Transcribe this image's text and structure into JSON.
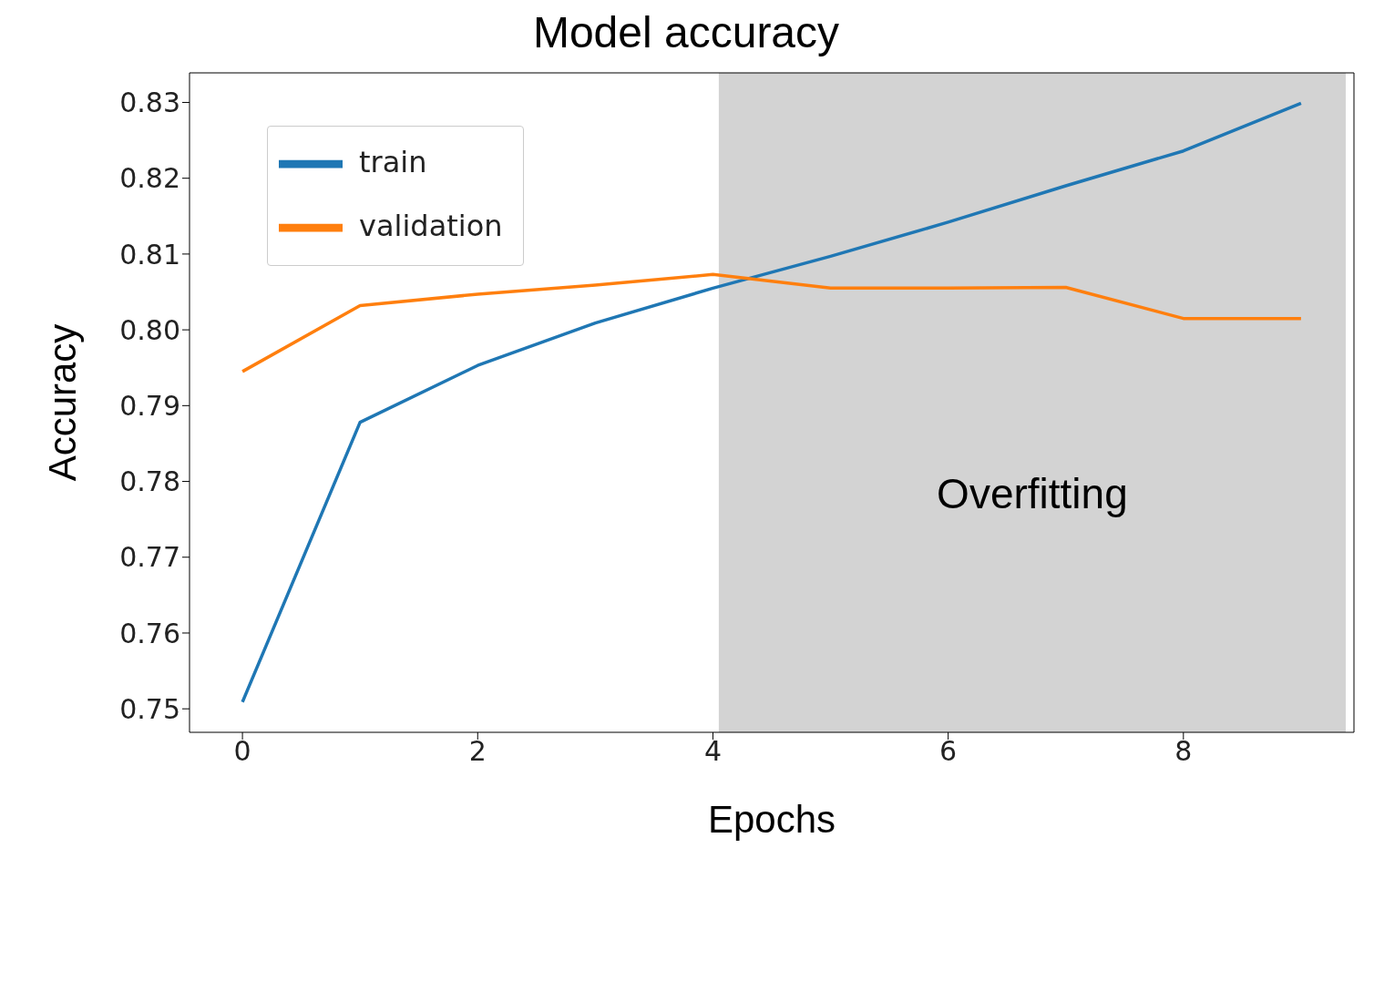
{
  "chart_data": {
    "type": "line",
    "title": "Model accuracy",
    "xlabel": "Epochs",
    "ylabel": "Accuracy",
    "x": [
      0,
      1,
      2,
      3,
      4,
      5,
      6,
      7,
      8,
      9
    ],
    "series": [
      {
        "name": "train",
        "color": "#1f77b4",
        "values": [
          0.7509,
          0.7878,
          0.7953,
          0.8009,
          0.8055,
          0.8097,
          0.8142,
          0.819,
          0.8236,
          0.8299
        ]
      },
      {
        "name": "validation",
        "color": "#ff7f0e",
        "values": [
          0.7945,
          0.8032,
          0.8047,
          0.8059,
          0.8073,
          0.8055,
          0.8055,
          0.8056,
          0.8015,
          0.8015
        ]
      }
    ],
    "xlim": [
      -0.45,
      9.45
    ],
    "xticks": [
      0,
      2,
      4,
      6,
      8
    ],
    "ylim": [
      0.7469,
      0.8339
    ],
    "yticks": [
      0.75,
      0.76,
      0.77,
      0.78,
      0.79,
      {
        "value": 0.8,
        "label": "0.80"
      },
      0.81,
      0.82,
      0.83
    ],
    "bands": [
      {
        "axis": "x",
        "from": 4.05,
        "to": 9.38,
        "label": "Overfitting",
        "color": "#d3d3d3"
      }
    ],
    "grid": false,
    "legend": "top left",
    "marker": "none",
    "line_style": "solid"
  }
}
